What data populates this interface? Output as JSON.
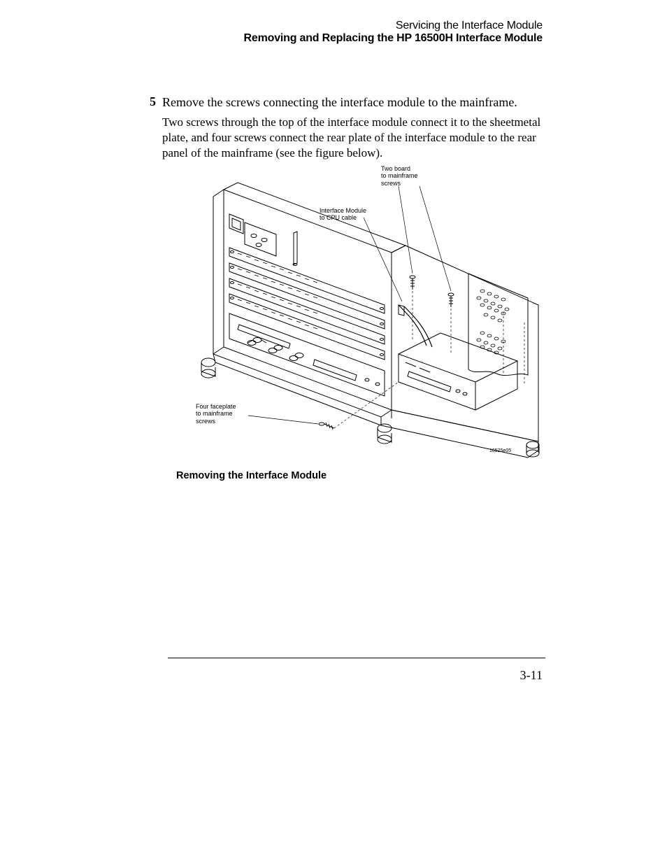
{
  "header": {
    "chapter": "Servicing the Interface Module",
    "section": "Removing and Replacing the HP 16500H Interface Module"
  },
  "step": {
    "number": "5",
    "title": "Remove the screws connecting the interface module to the mainframe.",
    "body": "Two screws through the top of the interface module connect it to the sheetmetal plate, and four screws connect the rear plate of the interface module to the rear panel of the mainframe (see the figure below)."
  },
  "figure": {
    "caption": "Removing the Interface Module",
    "callouts": {
      "top": "Two board\nto mainframe\nscrews",
      "mid": "Interface Module\nto CPU cable",
      "left": "Four faceplate\nto mainframe\nscrews"
    },
    "figure_id": "16525e05"
  },
  "page_number": "3-11",
  "colors": {
    "text": "#000000",
    "background": "#ffffff",
    "line": "#000000"
  }
}
